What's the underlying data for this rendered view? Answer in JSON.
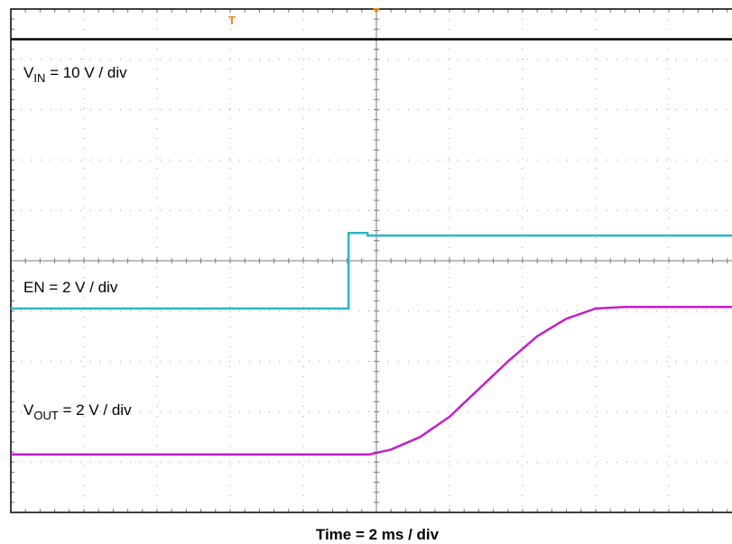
{
  "chart_data": {
    "type": "line",
    "xlabel": "Time = 2 ms / div",
    "divisions": {
      "x": 10,
      "y": 10
    },
    "x": [
      0,
      0.5,
      1,
      1.5,
      2,
      2.5,
      3,
      3.5,
      4,
      4.5,
      5,
      5.5,
      6,
      6.5,
      7,
      7.5,
      8,
      8.5,
      9,
      9.5,
      10
    ],
    "series": [
      {
        "name_main": "V",
        "name_sub": "IN",
        "name_rest": " = 10 V / div",
        "color": "#000000",
        "values": [
          0.6,
          0.6,
          0.6,
          0.6,
          0.6,
          0.6,
          0.6,
          0.6,
          0.6,
          0.6,
          0.6,
          0.6,
          0.6,
          0.6,
          0.6,
          0.6,
          0.6,
          0.6,
          0.6,
          0.6,
          0.6
        ]
      },
      {
        "name_main": "EN = 2 V / div",
        "name_sub": "",
        "name_rest": "",
        "color": "#2ab7c4",
        "x": [
          0,
          4.62,
          4.62,
          4.88,
          4.88,
          10
        ],
        "values": [
          5.95,
          5.95,
          4.45,
          4.45,
          4.5,
          4.5
        ]
      },
      {
        "name_main": "V",
        "name_sub": "OUT",
        "name_rest": " = 2 V / div",
        "color": "#c21ec8",
        "x": [
          0,
          4.9,
          5.2,
          5.6,
          6.0,
          6.4,
          6.8,
          7.2,
          7.6,
          8.0,
          8.4,
          8.8,
          9.2,
          9.5,
          10
        ],
        "values": [
          8.85,
          8.85,
          8.75,
          8.5,
          8.1,
          7.55,
          7.0,
          6.5,
          6.15,
          5.95,
          5.92,
          5.92,
          5.92,
          5.92,
          5.92
        ]
      }
    ],
    "trigger_marker": "T",
    "colors": {
      "grid": "#9a9a9a",
      "frame": "#000000",
      "trigger": "#e8861a"
    }
  }
}
